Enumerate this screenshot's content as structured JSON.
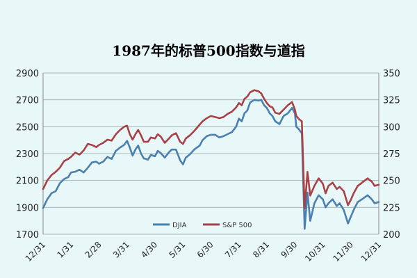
{
  "chart_data": {
    "type": "line",
    "title": "1987年的标普500指数与道指",
    "x_labels": [
      "12/31",
      "1/31",
      "2/28",
      "3/31",
      "4/30",
      "5/31",
      "6/30",
      "7/31",
      "8/31",
      "9/30",
      "10/31",
      "11/30",
      "12/31"
    ],
    "y_left": {
      "min": 1700,
      "max": 2900,
      "ticks": [
        1700,
        1900,
        2100,
        2300,
        2500,
        2700,
        2900
      ]
    },
    "y_right": {
      "min": 200,
      "max": 350,
      "ticks": [
        200,
        225,
        250,
        275,
        300,
        325,
        350
      ]
    },
    "grid": true,
    "legend_position": "bottom-center",
    "series": [
      {
        "name": "DJIA",
        "axis": "left",
        "color": "#4a7fb0",
        "points": [
          [
            0,
            1895
          ],
          [
            0.15,
            1960
          ],
          [
            0.3,
            2005
          ],
          [
            0.45,
            2020
          ],
          [
            0.6,
            2080
          ],
          [
            0.75,
            2110
          ],
          [
            0.9,
            2125
          ],
          [
            1.0,
            2160
          ],
          [
            1.15,
            2165
          ],
          [
            1.3,
            2180
          ],
          [
            1.45,
            2160
          ],
          [
            1.6,
            2195
          ],
          [
            1.75,
            2235
          ],
          [
            1.9,
            2240
          ],
          [
            2.0,
            2225
          ],
          [
            2.15,
            2240
          ],
          [
            2.3,
            2275
          ],
          [
            2.45,
            2260
          ],
          [
            2.6,
            2320
          ],
          [
            2.75,
            2345
          ],
          [
            2.9,
            2365
          ],
          [
            3.0,
            2395
          ],
          [
            3.1,
            2345
          ],
          [
            3.2,
            2285
          ],
          [
            3.3,
            2330
          ],
          [
            3.4,
            2360
          ],
          [
            3.5,
            2300
          ],
          [
            3.6,
            2265
          ],
          [
            3.75,
            2255
          ],
          [
            3.85,
            2290
          ],
          [
            4.0,
            2280
          ],
          [
            4.1,
            2320
          ],
          [
            4.2,
            2305
          ],
          [
            4.35,
            2270
          ],
          [
            4.5,
            2310
          ],
          [
            4.6,
            2330
          ],
          [
            4.75,
            2330
          ],
          [
            4.9,
            2250
          ],
          [
            5.0,
            2220
          ],
          [
            5.1,
            2270
          ],
          [
            5.25,
            2295
          ],
          [
            5.4,
            2330
          ],
          [
            5.5,
            2345
          ],
          [
            5.6,
            2360
          ],
          [
            5.7,
            2400
          ],
          [
            5.85,
            2430
          ],
          [
            6.0,
            2440
          ],
          [
            6.15,
            2440
          ],
          [
            6.3,
            2420
          ],
          [
            6.45,
            2430
          ],
          [
            6.6,
            2445
          ],
          [
            6.75,
            2460
          ],
          [
            6.9,
            2500
          ],
          [
            7.0,
            2560
          ],
          [
            7.1,
            2540
          ],
          [
            7.2,
            2600
          ],
          [
            7.3,
            2620
          ],
          [
            7.4,
            2680
          ],
          [
            7.55,
            2700
          ],
          [
            7.7,
            2695
          ],
          [
            7.8,
            2700
          ],
          [
            7.9,
            2660
          ],
          [
            8.0,
            2640
          ],
          [
            8.1,
            2600
          ],
          [
            8.2,
            2580
          ],
          [
            8.3,
            2540
          ],
          [
            8.45,
            2520
          ],
          [
            8.6,
            2580
          ],
          [
            8.75,
            2600
          ],
          [
            8.9,
            2640
          ],
          [
            9.0,
            2600
          ],
          [
            9.05,
            2500
          ],
          [
            9.15,
            2480
          ],
          [
            9.25,
            2450
          ],
          [
            9.35,
            1740
          ],
          [
            9.45,
            2010
          ],
          [
            9.55,
            1800
          ],
          [
            9.7,
            1930
          ],
          [
            9.85,
            1990
          ],
          [
            10.0,
            1960
          ],
          [
            10.1,
            1900
          ],
          [
            10.2,
            1930
          ],
          [
            10.35,
            1960
          ],
          [
            10.5,
            1910
          ],
          [
            10.6,
            1930
          ],
          [
            10.75,
            1880
          ],
          [
            10.9,
            1780
          ],
          [
            11.0,
            1830
          ],
          [
            11.1,
            1880
          ],
          [
            11.25,
            1940
          ],
          [
            11.4,
            1960
          ],
          [
            11.6,
            1990
          ],
          [
            11.75,
            1960
          ],
          [
            11.85,
            1930
          ],
          [
            12.0,
            1940
          ]
        ]
      },
      {
        "name": "S&P 500",
        "axis": "right",
        "color": "#a84045",
        "points": [
          [
            0,
            242
          ],
          [
            0.15,
            250
          ],
          [
            0.3,
            255
          ],
          [
            0.45,
            258
          ],
          [
            0.6,
            262
          ],
          [
            0.75,
            268
          ],
          [
            0.9,
            270
          ],
          [
            1.0,
            272
          ],
          [
            1.15,
            276
          ],
          [
            1.3,
            274
          ],
          [
            1.45,
            278
          ],
          [
            1.6,
            284
          ],
          [
            1.75,
            283
          ],
          [
            1.9,
            281
          ],
          [
            2.0,
            283
          ],
          [
            2.15,
            285
          ],
          [
            2.3,
            288
          ],
          [
            2.45,
            287
          ],
          [
            2.6,
            293
          ],
          [
            2.75,
            297
          ],
          [
            2.9,
            300
          ],
          [
            3.0,
            301
          ],
          [
            3.1,
            293
          ],
          [
            3.2,
            288
          ],
          [
            3.3,
            293
          ],
          [
            3.4,
            297
          ],
          [
            3.5,
            292
          ],
          [
            3.6,
            286
          ],
          [
            3.75,
            286
          ],
          [
            3.85,
            290
          ],
          [
            4.0,
            289
          ],
          [
            4.1,
            293
          ],
          [
            4.2,
            291
          ],
          [
            4.35,
            285
          ],
          [
            4.5,
            289
          ],
          [
            4.6,
            292
          ],
          [
            4.75,
            294
          ],
          [
            4.9,
            286
          ],
          [
            5.0,
            284
          ],
          [
            5.1,
            289
          ],
          [
            5.25,
            292
          ],
          [
            5.4,
            296
          ],
          [
            5.5,
            299
          ],
          [
            5.6,
            302
          ],
          [
            5.7,
            305
          ],
          [
            5.85,
            308
          ],
          [
            6.0,
            310
          ],
          [
            6.15,
            309
          ],
          [
            6.3,
            308
          ],
          [
            6.45,
            309
          ],
          [
            6.6,
            312
          ],
          [
            6.75,
            314
          ],
          [
            6.9,
            318
          ],
          [
            7.0,
            322
          ],
          [
            7.1,
            320
          ],
          [
            7.2,
            326
          ],
          [
            7.3,
            328
          ],
          [
            7.4,
            332
          ],
          [
            7.55,
            334
          ],
          [
            7.7,
            333
          ],
          [
            7.8,
            331
          ],
          [
            7.9,
            326
          ],
          [
            8.0,
            322
          ],
          [
            8.1,
            319
          ],
          [
            8.2,
            318
          ],
          [
            8.3,
            313
          ],
          [
            8.45,
            312
          ],
          [
            8.6,
            316
          ],
          [
            8.75,
            320
          ],
          [
            8.9,
            323
          ],
          [
            9.0,
            316
          ],
          [
            9.05,
            310
          ],
          [
            9.15,
            307
          ],
          [
            9.25,
            305
          ],
          [
            9.35,
            224
          ],
          [
            9.45,
            258
          ],
          [
            9.55,
            236
          ],
          [
            9.7,
            245
          ],
          [
            9.85,
            252
          ],
          [
            10.0,
            247
          ],
          [
            10.1,
            238
          ],
          [
            10.2,
            245
          ],
          [
            10.35,
            248
          ],
          [
            10.5,
            242
          ],
          [
            10.6,
            244
          ],
          [
            10.75,
            240
          ],
          [
            10.9,
            227
          ],
          [
            11.0,
            232
          ],
          [
            11.1,
            238
          ],
          [
            11.25,
            245
          ],
          [
            11.4,
            248
          ],
          [
            11.6,
            252
          ],
          [
            11.75,
            249
          ],
          [
            11.85,
            245
          ],
          [
            12.0,
            246
          ]
        ]
      }
    ]
  }
}
